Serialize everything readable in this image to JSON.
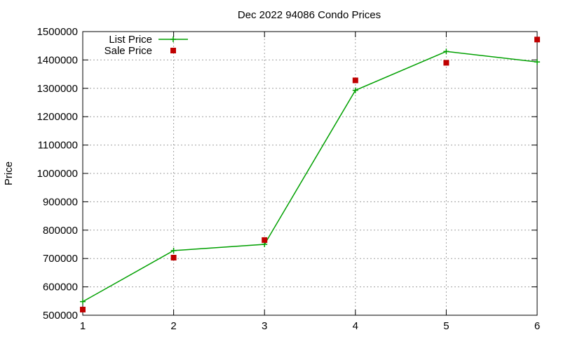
{
  "chart_data": {
    "type": "line",
    "title": "Dec 2022 94086 Condo Prices",
    "xlabel": "",
    "ylabel": "Price",
    "x": [
      1,
      2,
      3,
      4,
      5,
      6
    ],
    "xlim": [
      1,
      6
    ],
    "ylim": [
      500000,
      1500000
    ],
    "xticks": [
      1,
      2,
      3,
      4,
      5,
      6
    ],
    "yticks": [
      500000,
      600000,
      700000,
      800000,
      900000,
      1000000,
      1100000,
      1200000,
      1300000,
      1400000,
      1500000
    ],
    "grid": true,
    "legend_position": "top-left",
    "series": [
      {
        "name": "List Price",
        "style": "line-with-plus-markers",
        "color": "#00a000",
        "values": [
          548000,
          728000,
          750000,
          1293000,
          1430000,
          1393000
        ]
      },
      {
        "name": "Sale Price",
        "style": "square-markers",
        "color": "#c00000",
        "values": [
          520000,
          703000,
          765000,
          1328000,
          1390000,
          1472000
        ]
      }
    ]
  }
}
